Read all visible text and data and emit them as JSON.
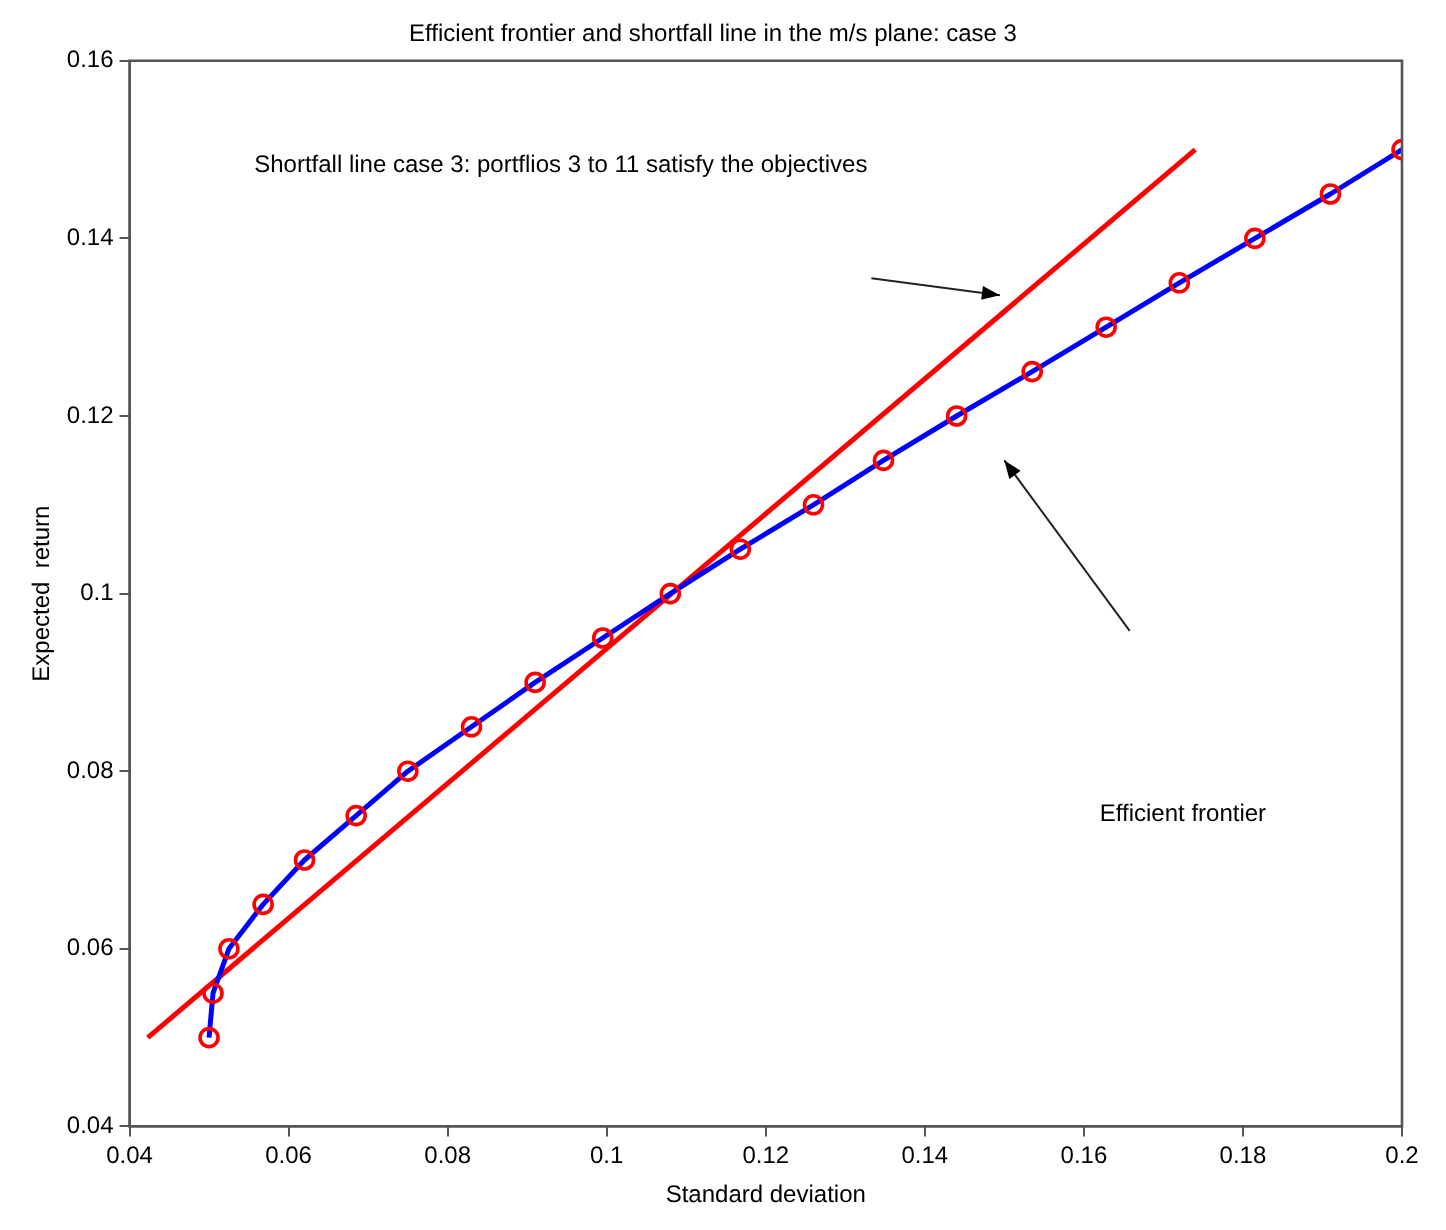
{
  "chart_data": {
    "type": "line",
    "title": "Efficient frontier and shortfall line in the m/s plane: case 3",
    "xlabel": "Standard deviation",
    "ylabel": "Expected  return",
    "series": [
      {
        "color": "#0000ff",
        "marker": "circle",
        "colors": [
          "#ff0000",
          "#ff0000",
          "#ff0000",
          "#ff0000",
          "#ff0000",
          "#ff0000",
          "#ff0000",
          "#ff0000",
          "#ff0000",
          "#ff0000",
          "#ff0000",
          "#ff0000",
          "#ff0000",
          "#ff0000",
          "#ff0000",
          "#ff0000",
          "#ff0000",
          "#ff0000",
          "#ff0000",
          "#ff0000",
          "#ff0000"
        ],
        "x": [
          0.05,
          0.0505,
          0.0525,
          0.0568,
          0.062,
          0.0685,
          0.075,
          0.083,
          0.091,
          0.0995,
          0.108,
          0.1168,
          0.126,
          0.1348,
          0.144,
          0.1535,
          0.1628,
          0.172,
          0.1815,
          0.191,
          0.2
        ],
        "values": [
          0.05,
          0.055,
          0.06,
          0.065,
          0.07,
          0.075,
          0.08,
          0.085,
          0.09,
          0.095,
          0.1,
          0.105,
          0.11,
          0.115,
          0.12,
          0.125,
          0.13,
          0.135,
          0.14,
          0.145,
          0.15
        ]
      },
      {
        "color": "#ff0000",
        "marker": "none",
        "x": [
          0.0423,
          0.174
        ],
        "values": [
          0.05,
          0.15
        ]
      }
    ],
    "annotations": [
      "Shortfall line case 3: portflios 3 to 11 satisfy the objectives",
      "Efficient frontier"
    ],
    "xlim": [
      0.04,
      0.2
    ],
    "ylim": [
      0.04,
      0.16
    ],
    "xticks": [
      0.04,
      0.06,
      0.08,
      0.1,
      0.12,
      0.14,
      0.16,
      0.18,
      0.2
    ],
    "yticks": [
      0.04,
      0.06,
      0.08,
      0.1,
      0.12,
      0.14,
      0.16
    ],
    "grid": false,
    "legend": false
  }
}
